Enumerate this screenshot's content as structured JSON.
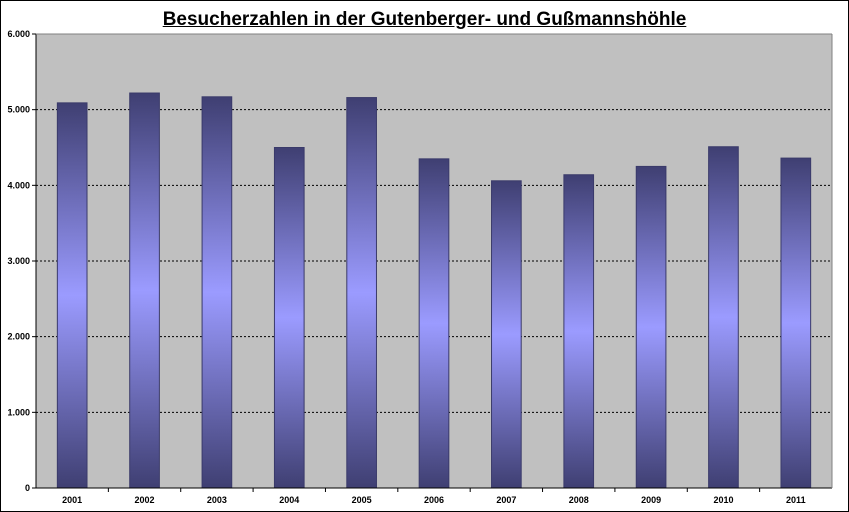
{
  "chart_data": {
    "type": "bar",
    "title": "Besucherzahlen in der Gutenberger- und Gußmannshöhle",
    "xlabel": "",
    "ylabel": "",
    "categories": [
      "2001",
      "2002",
      "2003",
      "2004",
      "2005",
      "2006",
      "2007",
      "2008",
      "2009",
      "2010",
      "2011"
    ],
    "values": [
      5090,
      5220,
      5170,
      4500,
      5160,
      4350,
      4060,
      4140,
      4250,
      4510,
      4360
    ],
    "ylim": [
      0,
      6000
    ],
    "yticks": [
      0,
      1000,
      2000,
      3000,
      4000,
      5000,
      6000
    ],
    "ytick_labels": [
      "0",
      "1.000",
      "2.000",
      "3.000",
      "4.000",
      "5.000",
      "6.000"
    ],
    "grid": "horizontal dotted",
    "legend": "none",
    "colors": {
      "plot_background": "#c0c0c0",
      "bar_edge": "#3a3a6a",
      "bar_dark": "#3f3f72",
      "bar_light": "#9b9bff"
    }
  }
}
